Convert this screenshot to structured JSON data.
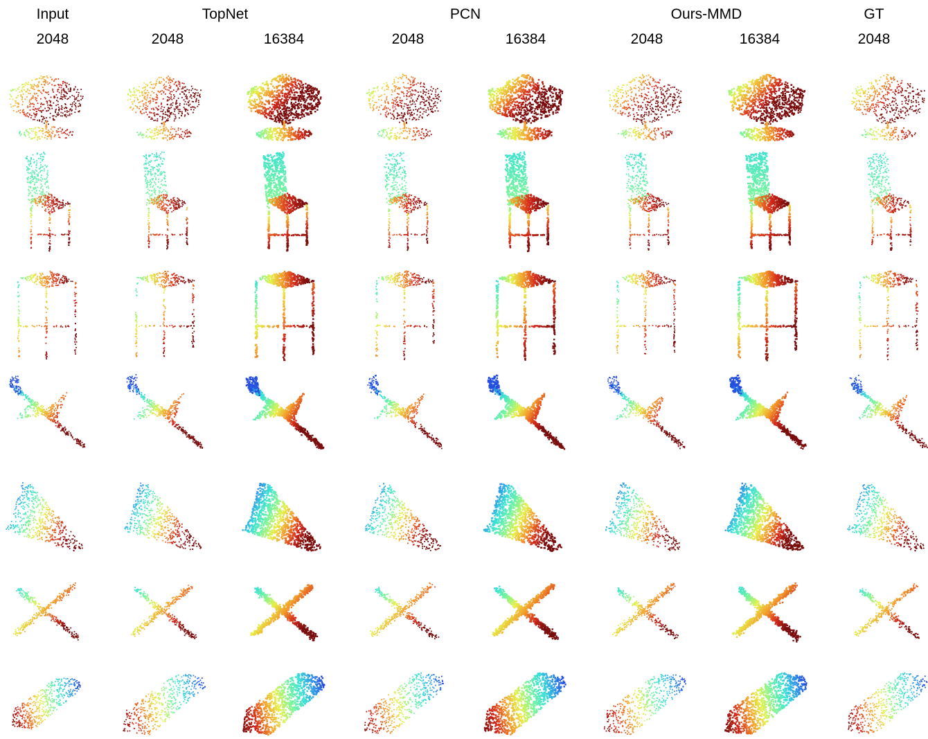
{
  "figure": {
    "method_headers": [
      "Input",
      "TopNet",
      "PCN",
      "Ours-MMD",
      "GT"
    ],
    "resolution_headers": [
      "2048",
      "2048",
      "16384",
      "2048",
      "16384",
      "2048",
      "16384",
      "2048"
    ],
    "rows": [
      {
        "object": "swivel-chair"
      },
      {
        "object": "spindle-back-chair"
      },
      {
        "object": "bar-stool"
      },
      {
        "object": "jet-airplane"
      },
      {
        "object": "delta-wing-airplane"
      },
      {
        "object": "cross-wing-airplane"
      },
      {
        "object": "boat"
      }
    ],
    "colormap": [
      "#1e2bd6",
      "#2e8fe8",
      "#39e0d6",
      "#79f59a",
      "#e6f04a",
      "#f39a2a",
      "#d42a1a",
      "#7a0d0d"
    ]
  }
}
